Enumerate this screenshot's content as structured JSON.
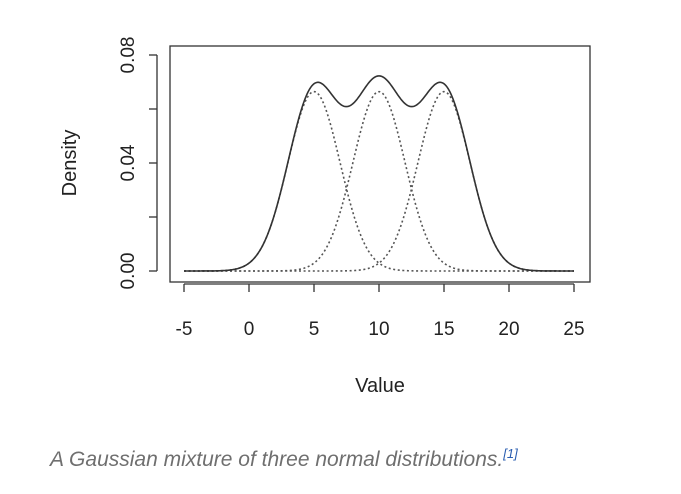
{
  "chart_data": {
    "type": "line",
    "title": "",
    "xlabel": "Value",
    "ylabel": "Density",
    "xlim": [
      -5,
      25
    ],
    "ylim": [
      0,
      0.08
    ],
    "x_ticks": [
      "-5",
      "0",
      "5",
      "10",
      "15",
      "20",
      "25"
    ],
    "y_ticks": [
      "0.00",
      "0.04",
      "0.08"
    ],
    "y_minor_ticks": [
      0.02,
      0.06
    ],
    "grid": false,
    "legend": "none",
    "series": [
      {
        "role": "mixture",
        "style": "solid",
        "color": "#333333",
        "components": [
          0,
          1,
          2
        ]
      },
      {
        "role": "component",
        "style": "dotted",
        "color": "#555555",
        "mean": 5,
        "sd": 2,
        "weight": 0.333
      },
      {
        "role": "component",
        "style": "dotted",
        "color": "#555555",
        "mean": 10,
        "sd": 2,
        "weight": 0.333
      },
      {
        "role": "component",
        "style": "dotted",
        "color": "#555555",
        "mean": 15,
        "sd": 2,
        "weight": 0.333
      }
    ],
    "x_range": [
      -5,
      25
    ]
  },
  "caption": {
    "text": "A Gaussian mixture of three normal distributions.",
    "ref": "[1]"
  },
  "colors": {
    "axis": "#333333",
    "caption": "#6f6f6f",
    "ref_link": "#2a5db0"
  }
}
